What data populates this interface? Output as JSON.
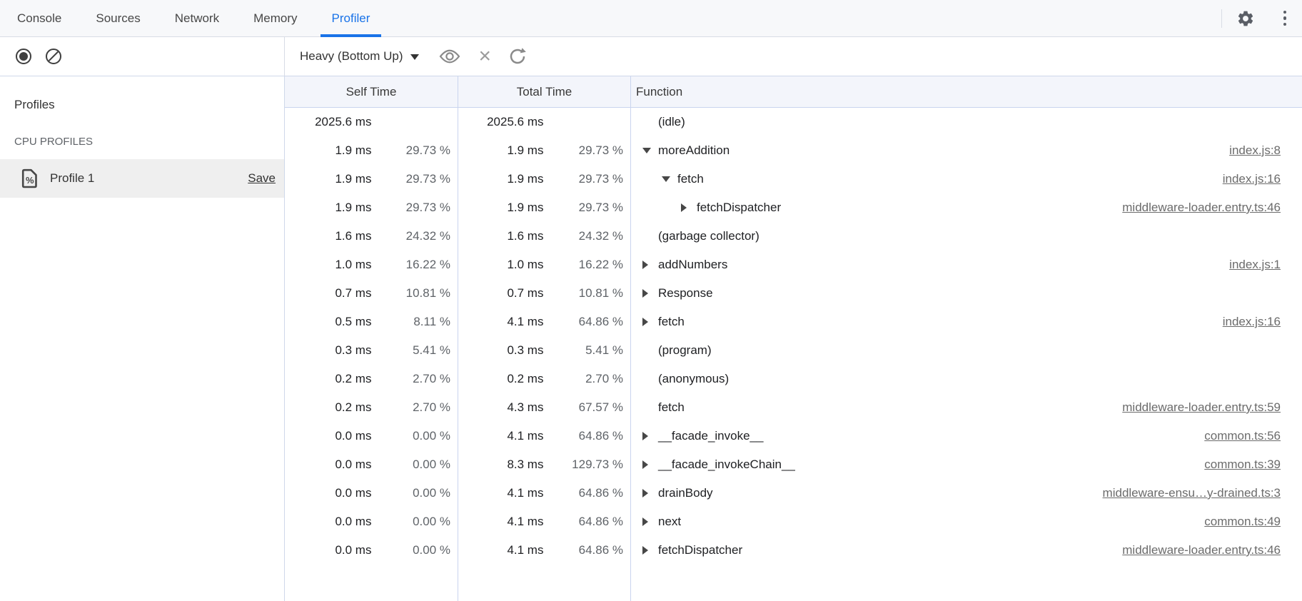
{
  "tabs": {
    "items": [
      {
        "label": "Console",
        "active": false
      },
      {
        "label": "Sources",
        "active": false
      },
      {
        "label": "Network",
        "active": false
      },
      {
        "label": "Memory",
        "active": false
      },
      {
        "label": "Profiler",
        "active": true
      }
    ]
  },
  "toolbar": {
    "view_mode": "Heavy (Bottom Up)",
    "icons": [
      "record-icon",
      "clear-icon",
      "eye-icon",
      "close-icon",
      "refresh-icon",
      "gear-icon",
      "kebab-menu-icon"
    ]
  },
  "sidebar": {
    "heading": "Profiles",
    "section_label": "CPU PROFILES",
    "profiles": [
      {
        "name": "Profile 1",
        "action": "Save",
        "selected": true,
        "icon": "profile-percent-document-icon"
      }
    ]
  },
  "colors": {
    "accent_blue": "#1a73e8",
    "grid_border": "#c9d4ee",
    "header_bg": "#f3f5fb",
    "selected_row_bg": "#efefef",
    "link_gray": "#6b6b6b"
  },
  "table": {
    "headers": {
      "self": "Self Time",
      "total": "Total Time",
      "function": "Function"
    },
    "rows": [
      {
        "self_ms": "2025.6 ms",
        "self_pct": "",
        "total_ms": "2025.6 ms",
        "total_pct": "",
        "fn": "(idle)",
        "level": 0,
        "arrow": "none",
        "link": ""
      },
      {
        "self_ms": "1.9 ms",
        "self_pct": "29.73 %",
        "total_ms": "1.9 ms",
        "total_pct": "29.73 %",
        "fn": "moreAddition",
        "level": 0,
        "arrow": "expanded",
        "link": "index.js:8"
      },
      {
        "self_ms": "1.9 ms",
        "self_pct": "29.73 %",
        "total_ms": "1.9 ms",
        "total_pct": "29.73 %",
        "fn": "fetch",
        "level": 1,
        "arrow": "expanded",
        "link": "index.js:16"
      },
      {
        "self_ms": "1.9 ms",
        "self_pct": "29.73 %",
        "total_ms": "1.9 ms",
        "total_pct": "29.73 %",
        "fn": "fetchDispatcher",
        "level": 2,
        "arrow": "collapsed",
        "link": "middleware-loader.entry.ts:46"
      },
      {
        "self_ms": "1.6 ms",
        "self_pct": "24.32 %",
        "total_ms": "1.6 ms",
        "total_pct": "24.32 %",
        "fn": "(garbage collector)",
        "level": 0,
        "arrow": "none",
        "link": ""
      },
      {
        "self_ms": "1.0 ms",
        "self_pct": "16.22 %",
        "total_ms": "1.0 ms",
        "total_pct": "16.22 %",
        "fn": "addNumbers",
        "level": 0,
        "arrow": "collapsed",
        "link": "index.js:1"
      },
      {
        "self_ms": "0.7 ms",
        "self_pct": "10.81 %",
        "total_ms": "0.7 ms",
        "total_pct": "10.81 %",
        "fn": "Response",
        "level": 0,
        "arrow": "collapsed",
        "link": ""
      },
      {
        "self_ms": "0.5 ms",
        "self_pct": "8.11 %",
        "total_ms": "4.1 ms",
        "total_pct": "64.86 %",
        "fn": "fetch",
        "level": 0,
        "arrow": "collapsed",
        "link": "index.js:16"
      },
      {
        "self_ms": "0.3 ms",
        "self_pct": "5.41 %",
        "total_ms": "0.3 ms",
        "total_pct": "5.41 %",
        "fn": "(program)",
        "level": 0,
        "arrow": "none",
        "link": ""
      },
      {
        "self_ms": "0.2 ms",
        "self_pct": "2.70 %",
        "total_ms": "0.2 ms",
        "total_pct": "2.70 %",
        "fn": "(anonymous)",
        "level": 0,
        "arrow": "none",
        "link": ""
      },
      {
        "self_ms": "0.2 ms",
        "self_pct": "2.70 %",
        "total_ms": "4.3 ms",
        "total_pct": "67.57 %",
        "fn": "fetch",
        "level": 0,
        "arrow": "none",
        "link": "middleware-loader.entry.ts:59"
      },
      {
        "self_ms": "0.0 ms",
        "self_pct": "0.00 %",
        "total_ms": "4.1 ms",
        "total_pct": "64.86 %",
        "fn": "__facade_invoke__",
        "level": 0,
        "arrow": "collapsed",
        "link": "common.ts:56"
      },
      {
        "self_ms": "0.0 ms",
        "self_pct": "0.00 %",
        "total_ms": "8.3 ms",
        "total_pct": "129.73 %",
        "fn": "__facade_invokeChain__",
        "level": 0,
        "arrow": "collapsed",
        "link": "common.ts:39"
      },
      {
        "self_ms": "0.0 ms",
        "self_pct": "0.00 %",
        "total_ms": "4.1 ms",
        "total_pct": "64.86 %",
        "fn": "drainBody",
        "level": 0,
        "arrow": "collapsed",
        "link": "middleware-ensu…y-drained.ts:3"
      },
      {
        "self_ms": "0.0 ms",
        "self_pct": "0.00 %",
        "total_ms": "4.1 ms",
        "total_pct": "64.86 %",
        "fn": "next",
        "level": 0,
        "arrow": "collapsed",
        "link": "common.ts:49"
      },
      {
        "self_ms": "0.0 ms",
        "self_pct": "0.00 %",
        "total_ms": "4.1 ms",
        "total_pct": "64.86 %",
        "fn": "fetchDispatcher",
        "level": 0,
        "arrow": "collapsed",
        "link": "middleware-loader.entry.ts:46"
      }
    ]
  }
}
